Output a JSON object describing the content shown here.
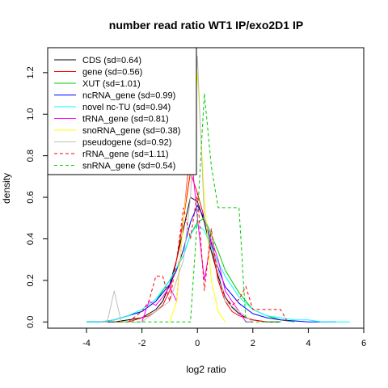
{
  "chart_data": {
    "type": "line",
    "title": "number read ratio WT1 IP/exo2D1 IP",
    "xlabel": "log2 ratio",
    "ylabel": "density",
    "xlim": [
      -5.4,
      6.0
    ],
    "ylim": [
      -0.03,
      1.32
    ],
    "xticks": [
      -4,
      -2,
      0,
      2,
      4,
      6
    ],
    "yticks": [
      0.0,
      0.2,
      0.4,
      0.6,
      0.8,
      1.0,
      1.2
    ],
    "legend_position": "top-left",
    "grid": false,
    "series": [
      {
        "name": "CDS (sd=0.64)",
        "color": "#000000",
        "dash": "solid",
        "x": [
          -3.5,
          -3.0,
          -2.5,
          -2.0,
          -1.75,
          -1.5,
          -1.25,
          -1.0,
          -0.75,
          -0.5,
          -0.25,
          0.0,
          0.25,
          0.5,
          0.75,
          1.0,
          1.25,
          1.5,
          1.75,
          2.0,
          2.5,
          3.0
        ],
        "y": [
          0.0,
          0.0,
          0.01,
          0.02,
          0.04,
          0.06,
          0.1,
          0.18,
          0.3,
          0.45,
          0.6,
          0.58,
          0.48,
          0.34,
          0.22,
          0.12,
          0.07,
          0.04,
          0.02,
          0.01,
          0.0,
          0.0
        ]
      },
      {
        "name": "gene (sd=0.56)",
        "color": "#ff0000",
        "dash": "solid",
        "x": [
          -3.0,
          -2.5,
          -2.0,
          -1.75,
          -1.5,
          -1.25,
          -1.0,
          -0.75,
          -0.5,
          -0.25,
          0.0,
          0.25,
          0.5,
          0.75,
          1.0,
          1.25,
          1.5,
          1.75,
          2.0,
          2.5
        ],
        "y": [
          0.0,
          0.0,
          0.02,
          0.03,
          0.05,
          0.08,
          0.15,
          0.3,
          0.5,
          0.72,
          0.62,
          0.5,
          0.38,
          0.2,
          0.1,
          0.05,
          0.03,
          0.02,
          0.01,
          0.0
        ]
      },
      {
        "name": "XUT (sd=1.01)",
        "color": "#00cc00",
        "dash": "solid",
        "x": [
          -4.0,
          -3.5,
          -3.0,
          -2.5,
          -2.0,
          -1.5,
          -1.0,
          -0.5,
          -0.25,
          0.0,
          0.25,
          0.5,
          0.75,
          1.0,
          1.5,
          2.0,
          2.5,
          3.0,
          3.5
        ],
        "y": [
          0.0,
          0.0,
          0.01,
          0.03,
          0.05,
          0.1,
          0.2,
          0.32,
          0.42,
          0.48,
          0.5,
          0.42,
          0.34,
          0.25,
          0.14,
          0.06,
          0.03,
          0.01,
          0.0
        ]
      },
      {
        "name": "ncRNA_gene (sd=0.99)",
        "color": "#0000ff",
        "dash": "solid",
        "x": [
          -4.0,
          -3.5,
          -3.0,
          -2.5,
          -2.0,
          -1.5,
          -1.0,
          -0.75,
          -0.5,
          -0.25,
          0.0,
          0.25,
          0.5,
          0.75,
          1.0,
          1.5,
          2.0,
          2.5,
          3.0,
          4.0,
          5.0
        ],
        "y": [
          0.0,
          0.0,
          0.01,
          0.03,
          0.05,
          0.1,
          0.18,
          0.25,
          0.35,
          0.48,
          0.56,
          0.5,
          0.38,
          0.26,
          0.17,
          0.09,
          0.04,
          0.02,
          0.01,
          0.0,
          0.0
        ]
      },
      {
        "name": "novel nc-TU (sd=0.94)",
        "color": "#00ffff",
        "dash": "solid",
        "x": [
          -4.0,
          -3.5,
          -3.0,
          -2.5,
          -2.0,
          -1.5,
          -1.0,
          -0.5,
          -0.25,
          0.0,
          0.25,
          0.5,
          1.0,
          1.5,
          2.0,
          2.5,
          3.0,
          3.5,
          4.0,
          4.5,
          5.0,
          5.5
        ],
        "y": [
          0.0,
          0.0,
          0.01,
          0.03,
          0.06,
          0.11,
          0.2,
          0.32,
          0.42,
          0.47,
          0.44,
          0.36,
          0.22,
          0.12,
          0.06,
          0.03,
          0.02,
          0.01,
          0.01,
          0.0,
          0.0,
          0.0
        ]
      },
      {
        "name": "tRNA_gene (sd=0.81)",
        "color": "#ff00ff",
        "dash": "solid",
        "x": [
          -2.0,
          -1.75,
          -1.5,
          -1.25,
          -1.0,
          -0.75,
          -0.5,
          -0.25,
          0.0,
          0.25,
          0.5,
          0.75,
          1.0,
          1.25,
          1.5,
          1.75,
          2.0
        ],
        "y": [
          0.0,
          0.1,
          0.08,
          0.12,
          0.17,
          0.1,
          0.5,
          0.85,
          0.5,
          0.2,
          0.4,
          0.3,
          0.15,
          0.1,
          0.05,
          0.0,
          0.0
        ]
      },
      {
        "name": "snoRNA_gene (sd=0.38)",
        "color": "#ffff00",
        "dash": "solid",
        "x": [
          -1.0,
          -0.75,
          -0.5,
          -0.25,
          0.0,
          0.25,
          0.5,
          0.75,
          1.0
        ],
        "y": [
          0.0,
          0.1,
          0.5,
          0.8,
          1.2,
          0.6,
          0.2,
          0.05,
          0.0
        ]
      },
      {
        "name": "pseudogene (sd=0.92)",
        "color": "#bebebe",
        "dash": "solid",
        "x": [
          -3.5,
          -3.25,
          -3.0,
          -2.75,
          -2.5,
          -2.0,
          -1.5,
          -1.0,
          -0.75,
          -0.5,
          -0.25,
          0.0,
          0.25,
          0.5,
          0.75,
          1.0,
          1.5,
          2.0
        ],
        "y": [
          0.0,
          0.0,
          0.15,
          0.0,
          0.0,
          0.0,
          0.05,
          0.1,
          0.2,
          0.3,
          0.6,
          1.28,
          0.5,
          0.4,
          0.25,
          0.1,
          0.05,
          0.0
        ]
      },
      {
        "name": "rRNA_gene (sd=1.11)",
        "color": "#ff0000",
        "dash": "dashed",
        "x": [
          -2.5,
          -2.0,
          -1.75,
          -1.5,
          -1.25,
          -1.0,
          -0.75,
          -0.5,
          -0.25,
          0.0,
          0.25,
          0.5,
          0.75,
          1.0,
          1.25,
          1.5,
          1.75,
          2.0,
          2.5,
          3.0,
          3.25
        ],
        "y": [
          0.0,
          0.05,
          0.1,
          0.22,
          0.22,
          0.1,
          0.3,
          0.55,
          0.4,
          0.62,
          0.15,
          0.45,
          0.2,
          0.12,
          0.08,
          0.11,
          0.17,
          0.06,
          0.06,
          0.06,
          0.0
        ]
      },
      {
        "name": "snRNA_gene (sd=0.54)",
        "color": "#00cc00",
        "dash": "dashed",
        "x": [
          -3.0,
          -2.0,
          -1.0,
          -0.25,
          0.0,
          0.25,
          0.5,
          0.75,
          1.0,
          1.25,
          1.5,
          1.75,
          2.0,
          3.0
        ],
        "y": [
          0.0,
          0.0,
          0.0,
          0.0,
          0.5,
          1.1,
          0.75,
          0.55,
          0.55,
          0.55,
          0.55,
          0.0,
          0.0,
          0.0
        ]
      }
    ]
  }
}
